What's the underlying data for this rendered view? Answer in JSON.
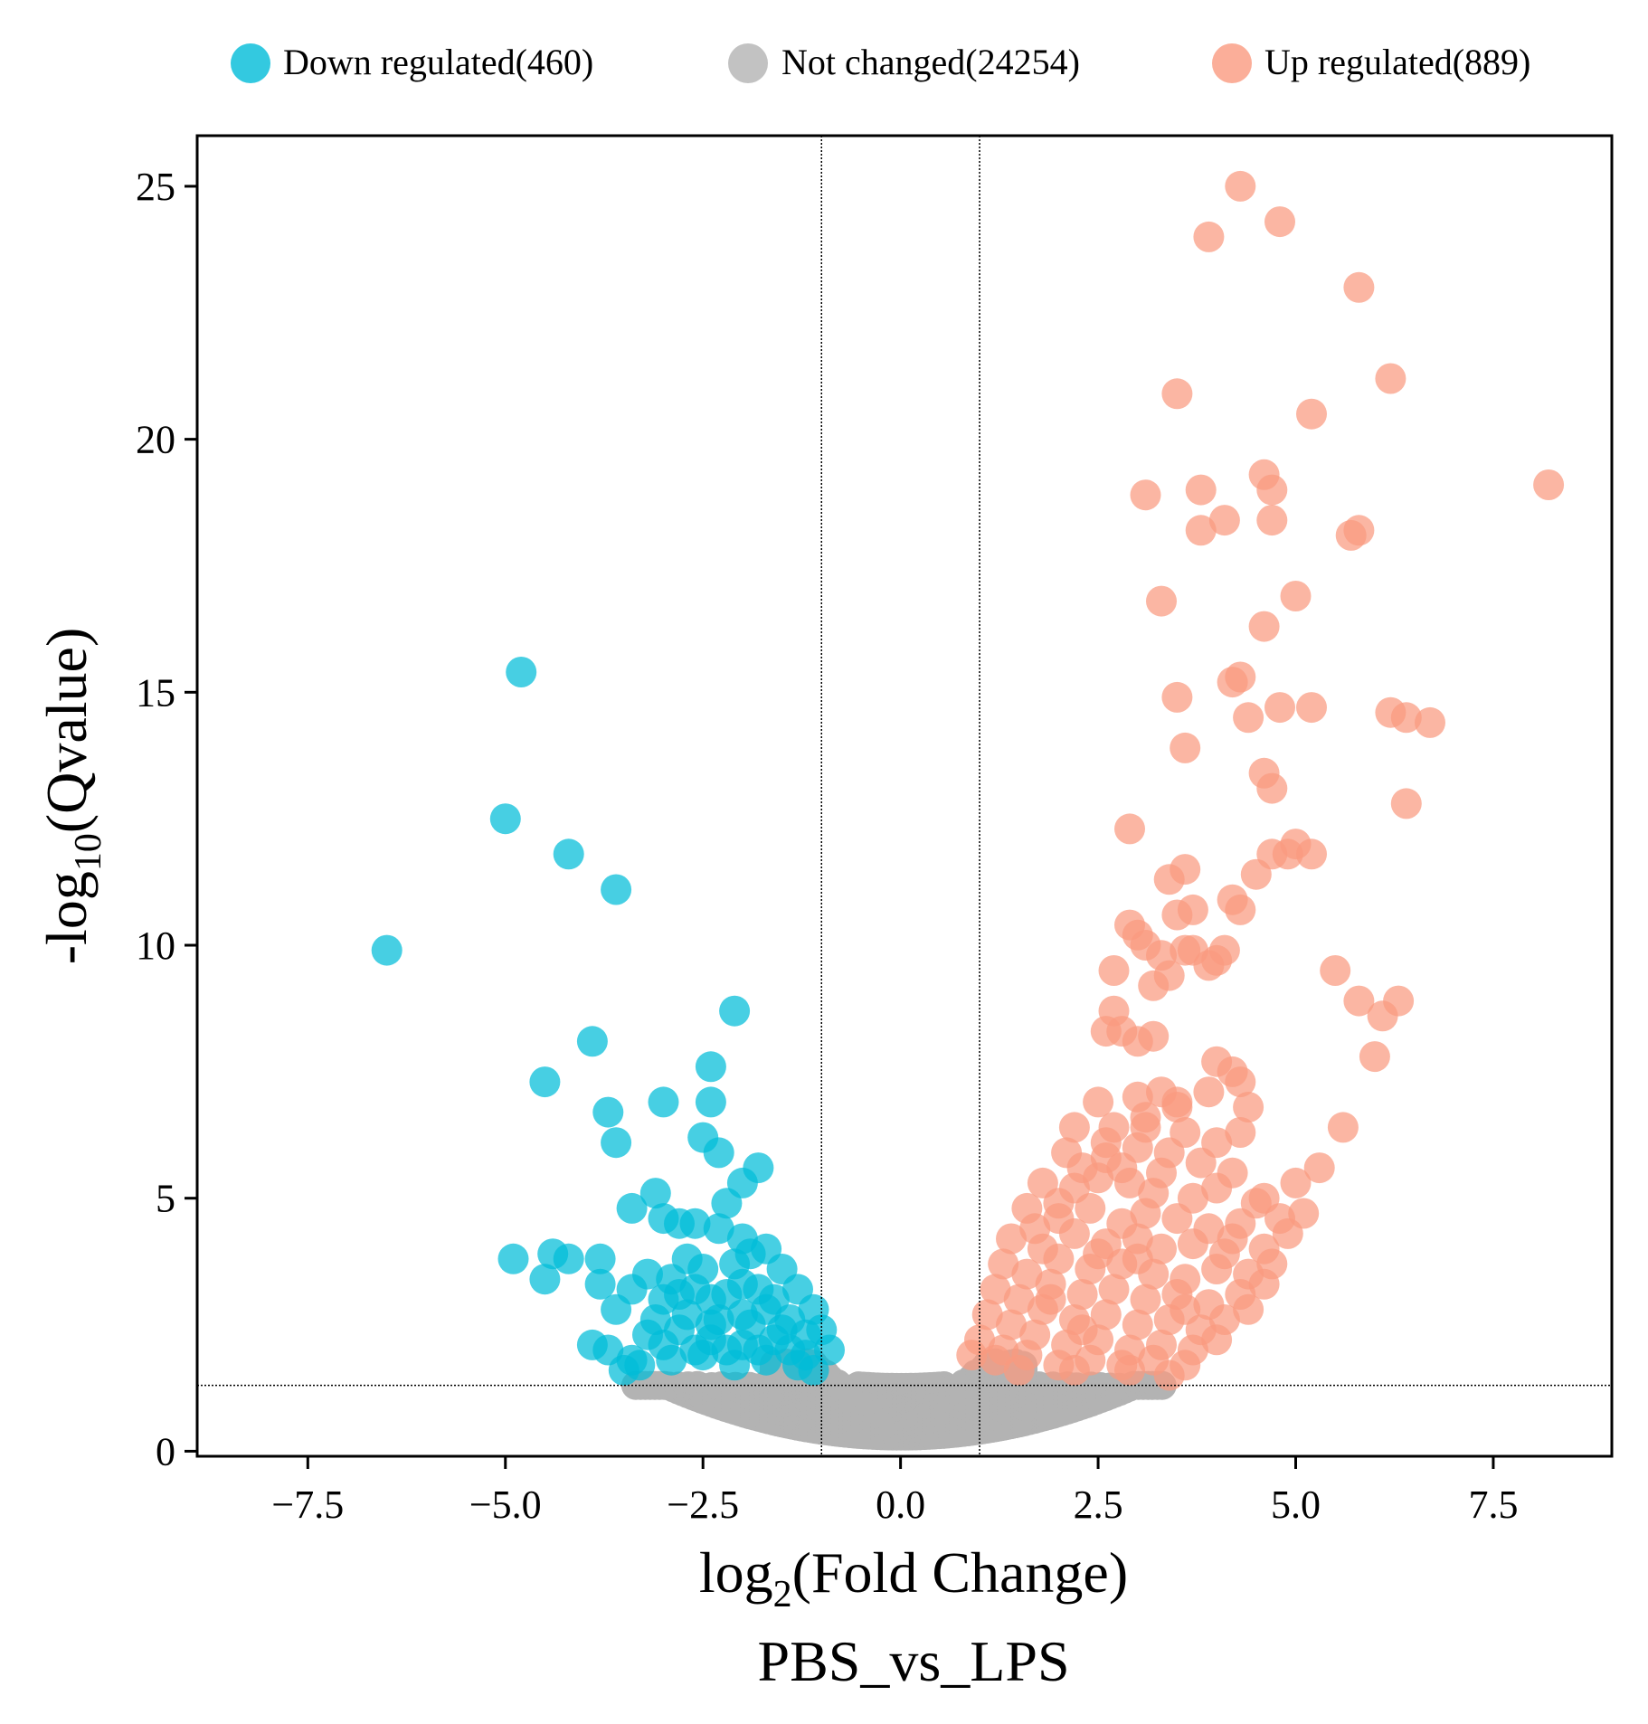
{
  "chart_data": {
    "type": "scatter",
    "title": "",
    "xlabel_main": "log",
    "xlabel_sub": "2",
    "xlabel_rest": "(Fold Change)",
    "ylabel_main": "-log",
    "ylabel_sub": "10",
    "ylabel_rest": "(Qvalue)",
    "subtitle": "PBS_vs_LPS",
    "xlim": [
      -8.9,
      9.0
    ],
    "ylim": [
      -0.1,
      26.0
    ],
    "x_ticks": [
      -7.5,
      -5.0,
      -2.5,
      0.0,
      2.5,
      5.0,
      7.5
    ],
    "x_tick_labels": [
      "−7.5",
      "−5.0",
      "−2.5",
      "0.0",
      "2.5",
      "5.0",
      "7.5"
    ],
    "y_ticks": [
      0,
      5,
      10,
      15,
      20,
      25
    ],
    "y_tick_labels": [
      "0",
      "5",
      "10",
      "15",
      "20",
      "25"
    ],
    "thresholds": {
      "fold_change_log2": [
        -1.0,
        1.0
      ],
      "qvalue_neglog10": 1.3
    },
    "legend": {
      "position": "top",
      "entries": [
        {
          "label": "Down regulated(460)",
          "color": "#00bcd8"
        },
        {
          "label": "Not changed(24254)",
          "color": "#b3b3b3"
        },
        {
          "label": "Up regulated(889)",
          "color": "#fa9a80"
        }
      ]
    },
    "series": [
      {
        "name": "Down regulated",
        "count": 460,
        "color": "#00bcd8",
        "points": [
          [
            -6.5,
            9.9
          ],
          [
            -4.8,
            15.4
          ],
          [
            -5.0,
            12.5
          ],
          [
            -4.2,
            11.8
          ],
          [
            -3.6,
            11.1
          ],
          [
            -3.9,
            8.1
          ],
          [
            -4.5,
            7.3
          ],
          [
            -3.7,
            6.7
          ],
          [
            -3.6,
            6.1
          ],
          [
            -3.0,
            6.9
          ],
          [
            -2.1,
            8.7
          ],
          [
            -2.4,
            7.6
          ],
          [
            -2.4,
            6.9
          ],
          [
            -2.5,
            6.2
          ],
          [
            -2.3,
            5.9
          ],
          [
            -1.8,
            5.6
          ],
          [
            -2.0,
            5.3
          ],
          [
            -2.2,
            4.9
          ],
          [
            -3.1,
            5.1
          ],
          [
            -3.4,
            4.8
          ],
          [
            -3.0,
            4.6
          ],
          [
            -2.8,
            4.5
          ],
          [
            -2.6,
            4.5
          ],
          [
            -2.3,
            4.4
          ],
          [
            -2.0,
            4.2
          ],
          [
            -1.7,
            4.0
          ],
          [
            -1.5,
            3.6
          ],
          [
            -1.3,
            3.2
          ],
          [
            -1.1,
            2.8
          ],
          [
            -1.0,
            2.4
          ],
          [
            -0.9,
            2.0
          ],
          [
            -4.9,
            3.8
          ],
          [
            -4.4,
            3.9
          ],
          [
            -4.2,
            3.8
          ],
          [
            -3.8,
            3.8
          ],
          [
            -4.5,
            3.4
          ],
          [
            -3.8,
            3.3
          ],
          [
            -3.4,
            3.2
          ],
          [
            -3.2,
            3.5
          ],
          [
            -3.6,
            2.8
          ],
          [
            -3.0,
            3.0
          ],
          [
            -2.8,
            3.1
          ],
          [
            -2.6,
            3.2
          ],
          [
            -2.4,
            3.0
          ],
          [
            -2.2,
            3.1
          ],
          [
            -2.0,
            3.3
          ],
          [
            -1.8,
            3.2
          ],
          [
            -1.6,
            3.0
          ],
          [
            -3.9,
            2.1
          ],
          [
            -3.7,
            2.0
          ],
          [
            -3.4,
            1.8
          ],
          [
            -3.2,
            2.3
          ],
          [
            -3.0,
            2.1
          ],
          [
            -2.8,
            2.4
          ],
          [
            -2.6,
            2.0
          ],
          [
            -2.4,
            2.2
          ],
          [
            -2.2,
            2.0
          ],
          [
            -2.0,
            2.1
          ],
          [
            -1.8,
            2.0
          ],
          [
            -1.6,
            2.2
          ],
          [
            -1.4,
            2.0
          ],
          [
            -1.2,
            1.9
          ],
          [
            -3.5,
            1.6
          ],
          [
            -3.3,
            1.7
          ],
          [
            -2.9,
            1.8
          ],
          [
            -2.5,
            1.9
          ],
          [
            -2.1,
            1.7
          ],
          [
            -1.7,
            1.8
          ],
          [
            -1.3,
            1.7
          ],
          [
            -1.1,
            1.6
          ],
          [
            -2.7,
            2.7
          ],
          [
            -2.3,
            2.6
          ],
          [
            -1.9,
            2.5
          ],
          [
            -1.5,
            2.4
          ],
          [
            -2.5,
            3.6
          ],
          [
            -2.1,
            3.7
          ],
          [
            -1.9,
            3.9
          ],
          [
            -1.7,
            2.8
          ],
          [
            -1.4,
            2.6
          ],
          [
            -3.1,
            2.6
          ],
          [
            -2.7,
            3.8
          ],
          [
            -2.9,
            3.4
          ],
          [
            -1.2,
            2.3
          ],
          [
            -2.0,
            2.7
          ],
          [
            -2.4,
            2.5
          ]
        ]
      },
      {
        "name": "Up regulated",
        "count": 889,
        "color": "#fa9a80",
        "points": [
          [
            4.3,
            25.0
          ],
          [
            4.8,
            24.3
          ],
          [
            3.9,
            24.0
          ],
          [
            5.8,
            23.0
          ],
          [
            6.2,
            21.2
          ],
          [
            3.5,
            20.9
          ],
          [
            5.2,
            20.5
          ],
          [
            8.2,
            19.1
          ],
          [
            4.6,
            19.3
          ],
          [
            4.7,
            19.0
          ],
          [
            3.1,
            18.9
          ],
          [
            3.8,
            19.0
          ],
          [
            4.1,
            18.4
          ],
          [
            3.8,
            18.2
          ],
          [
            4.7,
            18.4
          ],
          [
            5.7,
            18.1
          ],
          [
            5.8,
            18.2
          ],
          [
            5.0,
            16.9
          ],
          [
            3.3,
            16.8
          ],
          [
            4.6,
            16.3
          ],
          [
            4.3,
            15.3
          ],
          [
            4.2,
            15.2
          ],
          [
            3.5,
            14.9
          ],
          [
            4.8,
            14.7
          ],
          [
            5.2,
            14.7
          ],
          [
            4.4,
            14.5
          ],
          [
            6.2,
            14.6
          ],
          [
            6.4,
            14.5
          ],
          [
            6.7,
            14.4
          ],
          [
            3.6,
            13.9
          ],
          [
            4.6,
            13.4
          ],
          [
            4.7,
            13.1
          ],
          [
            6.4,
            12.8
          ],
          [
            2.9,
            12.3
          ],
          [
            4.7,
            11.8
          ],
          [
            5.0,
            12.0
          ],
          [
            4.9,
            11.8
          ],
          [
            5.2,
            11.8
          ],
          [
            3.6,
            11.5
          ],
          [
            4.5,
            11.4
          ],
          [
            3.4,
            11.3
          ],
          [
            4.2,
            10.9
          ],
          [
            4.3,
            10.7
          ],
          [
            3.5,
            10.6
          ],
          [
            3.7,
            10.7
          ],
          [
            2.9,
            10.4
          ],
          [
            3.0,
            10.2
          ],
          [
            3.1,
            10.0
          ],
          [
            3.3,
            9.8
          ],
          [
            3.6,
            9.9
          ],
          [
            3.7,
            9.9
          ],
          [
            4.0,
            9.7
          ],
          [
            4.1,
            9.9
          ],
          [
            3.9,
            9.6
          ],
          [
            2.7,
            9.5
          ],
          [
            3.4,
            9.4
          ],
          [
            5.5,
            9.5
          ],
          [
            3.2,
            9.2
          ],
          [
            5.8,
            8.9
          ],
          [
            6.3,
            8.9
          ],
          [
            6.1,
            8.6
          ],
          [
            2.7,
            8.7
          ],
          [
            2.6,
            8.3
          ],
          [
            2.8,
            8.3
          ],
          [
            3.0,
            8.1
          ],
          [
            3.2,
            8.2
          ],
          [
            6.0,
            7.8
          ],
          [
            4.0,
            7.7
          ],
          [
            4.2,
            7.5
          ],
          [
            4.3,
            7.3
          ],
          [
            2.5,
            6.9
          ],
          [
            3.0,
            7.0
          ],
          [
            3.3,
            7.1
          ],
          [
            3.5,
            6.8
          ],
          [
            3.9,
            7.1
          ],
          [
            4.4,
            6.8
          ],
          [
            2.2,
            6.4
          ],
          [
            2.7,
            6.4
          ],
          [
            3.1,
            6.6
          ],
          [
            3.6,
            6.3
          ],
          [
            4.0,
            6.1
          ],
          [
            4.3,
            6.3
          ],
          [
            5.6,
            6.4
          ],
          [
            2.1,
            5.9
          ],
          [
            2.6,
            5.8
          ],
          [
            3.0,
            6.0
          ],
          [
            3.4,
            5.9
          ],
          [
            3.8,
            5.7
          ],
          [
            4.2,
            5.5
          ],
          [
            5.3,
            5.6
          ],
          [
            1.8,
            5.3
          ],
          [
            2.2,
            5.2
          ],
          [
            2.5,
            5.4
          ],
          [
            2.9,
            5.3
          ],
          [
            3.2,
            5.1
          ],
          [
            3.7,
            5.0
          ],
          [
            4.0,
            5.2
          ],
          [
            4.5,
            4.9
          ],
          [
            5.0,
            5.3
          ],
          [
            1.6,
            4.8
          ],
          [
            2.0,
            4.6
          ],
          [
            2.4,
            4.8
          ],
          [
            2.8,
            4.5
          ],
          [
            3.1,
            4.7
          ],
          [
            3.5,
            4.6
          ],
          [
            3.9,
            4.4
          ],
          [
            4.3,
            4.5
          ],
          [
            4.8,
            4.6
          ],
          [
            5.1,
            4.7
          ],
          [
            1.4,
            4.2
          ],
          [
            1.8,
            4.0
          ],
          [
            2.2,
            4.3
          ],
          [
            2.6,
            4.1
          ],
          [
            3.0,
            4.2
          ],
          [
            3.3,
            4.0
          ],
          [
            3.7,
            4.1
          ],
          [
            4.1,
            3.9
          ],
          [
            4.6,
            4.0
          ],
          [
            4.9,
            4.3
          ],
          [
            1.3,
            3.7
          ],
          [
            1.6,
            3.5
          ],
          [
            2.0,
            3.8
          ],
          [
            2.4,
            3.6
          ],
          [
            2.8,
            3.7
          ],
          [
            3.2,
            3.5
          ],
          [
            3.6,
            3.4
          ],
          [
            4.0,
            3.6
          ],
          [
            4.4,
            3.5
          ],
          [
            4.7,
            3.7
          ],
          [
            1.2,
            3.2
          ],
          [
            1.5,
            3.0
          ],
          [
            1.9,
            3.3
          ],
          [
            2.3,
            3.1
          ],
          [
            2.7,
            3.2
          ],
          [
            3.1,
            3.0
          ],
          [
            3.5,
            3.1
          ],
          [
            3.9,
            2.9
          ],
          [
            4.3,
            3.1
          ],
          [
            4.6,
            3.3
          ],
          [
            1.1,
            2.7
          ],
          [
            1.4,
            2.5
          ],
          [
            1.8,
            2.8
          ],
          [
            2.2,
            2.6
          ],
          [
            2.6,
            2.7
          ],
          [
            3.0,
            2.5
          ],
          [
            3.4,
            2.6
          ],
          [
            3.8,
            2.4
          ],
          [
            4.1,
            2.6
          ],
          [
            4.4,
            2.8
          ],
          [
            1.0,
            2.2
          ],
          [
            1.3,
            2.0
          ],
          [
            1.7,
            2.3
          ],
          [
            2.1,
            2.1
          ],
          [
            2.5,
            2.2
          ],
          [
            2.9,
            2.0
          ],
          [
            3.3,
            2.1
          ],
          [
            3.7,
            2.0
          ],
          [
            4.0,
            2.2
          ],
          [
            0.9,
            1.9
          ],
          [
            1.2,
            1.8
          ],
          [
            1.6,
            1.9
          ],
          [
            2.0,
            1.7
          ],
          [
            2.4,
            1.8
          ],
          [
            2.8,
            1.7
          ],
          [
            3.2,
            1.8
          ],
          [
            3.6,
            1.7
          ],
          [
            1.5,
            1.6
          ],
          [
            2.2,
            1.6
          ],
          [
            2.9,
            1.6
          ],
          [
            3.4,
            1.5
          ],
          [
            2.0,
            4.9
          ],
          [
            2.3,
            5.6
          ],
          [
            2.6,
            6.1
          ],
          [
            3.1,
            6.4
          ],
          [
            3.5,
            6.9
          ],
          [
            2.8,
            5.6
          ],
          [
            3.3,
            5.5
          ],
          [
            4.6,
            5.0
          ],
          [
            1.7,
            4.4
          ],
          [
            2.5,
            3.9
          ],
          [
            1.9,
            3.0
          ],
          [
            2.3,
            2.4
          ],
          [
            3.0,
            3.8
          ],
          [
            3.6,
            2.8
          ],
          [
            4.2,
            4.2
          ]
        ]
      },
      {
        "name": "Not changed",
        "count": 24254,
        "color": "#b3b3b3",
        "shape": "funnel band between threshold and baseline"
      }
    ]
  }
}
